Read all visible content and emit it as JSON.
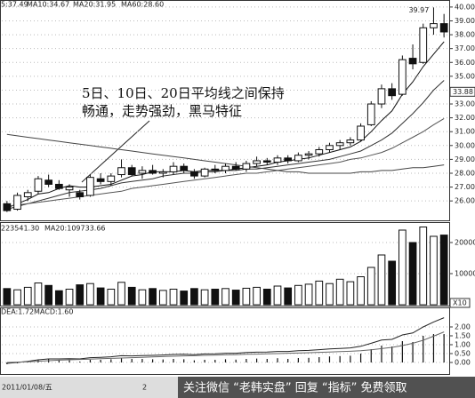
{
  "chart_data": [
    {
      "type": "candlestick",
      "header": [
        "5:37.49",
        "MA10:34.67",
        "MA20:31.95",
        "MA60:28.60"
      ],
      "annotation": [
        "5日、10日、20日平均线之间保持",
        "畅通，走势强劲，黑马特征"
      ],
      "open": [
        25.8,
        25.4,
        26.3,
        26.7,
        27.5,
        27.2,
        26.8,
        26.6,
        26.4,
        27.6,
        27.4,
        27.9,
        28.4,
        28.0,
        28.2,
        28.0,
        28.1,
        28.5,
        28.1,
        27.8,
        28.3,
        28.2,
        28.5,
        28.3,
        28.7,
        28.9,
        28.8,
        29.1,
        28.9,
        29.3,
        29.4,
        29.7,
        30.0,
        30.2,
        30.4,
        31.5,
        33.0,
        34.1,
        33.7,
        36.3,
        36.0,
        38.5,
        38.8
      ],
      "high": [
        26.0,
        26.6,
        26.8,
        27.8,
        27.9,
        27.5,
        27.2,
        26.8,
        27.9,
        28.0,
        28.0,
        29.0,
        28.6,
        28.5,
        28.6,
        28.3,
        28.8,
        28.7,
        28.3,
        28.4,
        28.6,
        28.7,
        28.8,
        28.9,
        29.2,
        29.1,
        29.3,
        29.3,
        29.5,
        29.6,
        29.9,
        30.2,
        30.4,
        30.6,
        31.6,
        33.2,
        34.4,
        34.5,
        36.5,
        37.3,
        38.8,
        39.97,
        39.5
      ],
      "low": [
        25.2,
        25.3,
        26.0,
        26.5,
        27.0,
        26.8,
        26.3,
        26.1,
        26.3,
        27.2,
        27.1,
        27.7,
        27.8,
        27.6,
        27.9,
        27.7,
        27.9,
        28.0,
        27.6,
        27.7,
        28.0,
        28.0,
        28.2,
        28.1,
        28.5,
        28.6,
        28.6,
        28.7,
        28.8,
        29.0,
        29.2,
        29.5,
        29.7,
        30.0,
        30.3,
        31.4,
        32.7,
        33.3,
        33.6,
        35.5,
        35.9,
        38.0,
        37.8
      ],
      "close": [
        25.3,
        26.4,
        26.6,
        27.6,
        27.2,
        26.9,
        27.0,
        26.3,
        27.7,
        27.4,
        27.8,
        28.4,
        27.9,
        28.2,
        28.0,
        28.1,
        28.5,
        28.2,
        27.8,
        28.3,
        28.2,
        28.5,
        28.3,
        28.7,
        28.9,
        28.8,
        29.1,
        28.9,
        29.3,
        29.4,
        29.7,
        30.0,
        30.2,
        30.4,
        31.4,
        33.0,
        34.1,
        33.6,
        36.2,
        35.9,
        38.5,
        38.8,
        38.2
      ],
      "series": [
        {
          "color": "#111",
          "values": [
            25.5,
            25.8,
            26.1,
            26.5,
            26.6,
            26.9,
            27.1,
            27.0,
            27.0,
            27.1,
            27.2,
            27.5,
            27.8,
            27.9,
            28.1,
            28.1,
            28.1,
            28.2,
            28.1,
            28.2,
            28.2,
            28.2,
            28.3,
            28.4,
            28.5,
            28.6,
            28.8,
            28.9,
            29.0,
            29.1,
            29.3,
            29.5,
            29.7,
            29.9,
            30.3,
            31.0,
            31.8,
            32.5,
            33.7,
            34.6,
            35.7,
            36.6,
            37.5
          ]
        },
        {
          "color": "#333",
          "values": [
            25.4,
            25.6,
            25.8,
            26.0,
            26.2,
            26.4,
            26.6,
            26.7,
            26.8,
            26.9,
            27.1,
            27.3,
            27.4,
            27.5,
            27.6,
            27.8,
            27.9,
            28.0,
            28.0,
            28.1,
            28.1,
            28.2,
            28.2,
            28.3,
            28.3,
            28.4,
            28.5,
            28.6,
            28.7,
            28.8,
            28.9,
            29.0,
            29.2,
            29.4,
            29.6,
            30.0,
            30.4,
            30.9,
            31.6,
            32.3,
            33.1,
            34.0,
            34.7
          ]
        },
        {
          "color": "#555",
          "values": [
            25.6,
            25.7,
            25.8,
            25.9,
            26.0,
            26.1,
            26.2,
            26.3,
            26.4,
            26.5,
            26.6,
            26.7,
            26.9,
            27.0,
            27.1,
            27.2,
            27.3,
            27.4,
            27.5,
            27.6,
            27.7,
            27.8,
            27.9,
            28.0,
            28.0,
            28.1,
            28.2,
            28.3,
            28.4,
            28.5,
            28.6,
            28.7,
            28.8,
            29.0,
            29.1,
            29.3,
            29.5,
            29.8,
            30.2,
            30.6,
            31.0,
            31.5,
            31.95
          ]
        },
        {
          "color": "#444",
          "values": [
            30.8,
            30.7,
            30.6,
            30.5,
            30.4,
            30.3,
            30.2,
            30.1,
            30.0,
            29.9,
            29.8,
            29.7,
            29.6,
            29.5,
            29.4,
            29.3,
            29.2,
            29.1,
            29.0,
            28.9,
            28.8,
            28.7,
            28.6,
            28.5,
            28.4,
            28.3,
            28.2,
            28.1,
            28.1,
            28.0,
            28.0,
            28.0,
            28.0,
            28.0,
            28.1,
            28.1,
            28.2,
            28.2,
            28.3,
            28.4,
            28.4,
            28.5,
            28.6
          ]
        }
      ],
      "last_price": 33.88,
      "ylim": [
        24.6,
        40.25
      ],
      "yticks": [
        {
          "value": 26,
          "label": "26.00"
        },
        {
          "value": 27,
          "label": "27.00"
        },
        {
          "value": 28,
          "label": "28.00"
        },
        {
          "value": 29,
          "label": "29.00"
        },
        {
          "value": 30,
          "label": "30.00"
        },
        {
          "value": 31,
          "label": "31.00"
        },
        {
          "value": 32,
          "label": "32.00"
        },
        {
          "value": 33,
          "label": "33.00"
        },
        {
          "value": 34,
          "label": "34.00"
        },
        {
          "value": 35,
          "label": "35.00"
        },
        {
          "value": 36,
          "label": "36.00"
        },
        {
          "value": 37,
          "label": "37.00"
        },
        {
          "value": 38,
          "label": "38.00"
        },
        {
          "value": 39,
          "label": "39.00"
        },
        {
          "value": 40,
          "label": "40.00"
        }
      ]
    },
    {
      "type": "bar",
      "header": [
        "223541.30",
        "MA20:109733.66"
      ],
      "unit_label": "X10",
      "values": [
        5200,
        4800,
        5600,
        7000,
        6200,
        4500,
        5000,
        6400,
        6800,
        5400,
        5000,
        7200,
        5600,
        4800,
        5200,
        4600,
        5000,
        4400,
        5200,
        4800,
        5000,
        5200,
        4700,
        5300,
        5600,
        5000,
        6000,
        5400,
        6200,
        6600,
        7600,
        6800,
        8200,
        7400,
        9000,
        12000,
        16000,
        14000,
        24000,
        20000,
        25000,
        22000,
        22400
      ],
      "ylim": [
        0,
        26000
      ],
      "yticks": [
        10000,
        20000
      ]
    },
    {
      "type": "macd",
      "header": [
        "DEA:1.72",
        "MACD:1.60"
      ],
      "values": [
        -0.1,
        -0.05,
        0.05,
        0.15,
        0.2,
        0.15,
        0.12,
        0.05,
        0.15,
        0.15,
        0.18,
        0.25,
        0.2,
        0.2,
        0.18,
        0.17,
        0.2,
        0.18,
        0.12,
        0.15,
        0.15,
        0.18,
        0.16,
        0.2,
        0.22,
        0.2,
        0.24,
        0.2,
        0.25,
        0.26,
        0.3,
        0.34,
        0.36,
        0.38,
        0.5,
        0.75,
        0.95,
        0.9,
        1.2,
        1.15,
        1.5,
        1.6,
        1.6
      ],
      "dif": [
        -0.05,
        0.0,
        0.06,
        0.15,
        0.2,
        0.2,
        0.21,
        0.2,
        0.27,
        0.29,
        0.32,
        0.38,
        0.37,
        0.39,
        0.4,
        0.42,
        0.45,
        0.46,
        0.44,
        0.48,
        0.49,
        0.52,
        0.52,
        0.56,
        0.58,
        0.59,
        0.62,
        0.62,
        0.66,
        0.68,
        0.72,
        0.76,
        0.79,
        0.82,
        0.91,
        1.08,
        1.26,
        1.3,
        1.55,
        1.66,
        2.0,
        2.28,
        2.52
      ],
      "dea": [
        0.0,
        0.02,
        0.04,
        0.07,
        0.1,
        0.13,
        0.15,
        0.17,
        0.19,
        0.21,
        0.23,
        0.25,
        0.27,
        0.29,
        0.31,
        0.33,
        0.35,
        0.37,
        0.38,
        0.4,
        0.41,
        0.43,
        0.44,
        0.46,
        0.47,
        0.49,
        0.5,
        0.52,
        0.53,
        0.55,
        0.57,
        0.59,
        0.61,
        0.63,
        0.66,
        0.71,
        0.78,
        0.85,
        0.95,
        1.08,
        1.25,
        1.48,
        1.72
      ],
      "ylim": [
        -0.6,
        2.9
      ],
      "yticks": [
        {
          "value": 0,
          "label": "0.00"
        },
        {
          "value": 0.5,
          "label": "0.50"
        },
        {
          "value": 1,
          "label": "1.00"
        },
        {
          "value": 1.5,
          "label": "1.50"
        },
        {
          "value": 2,
          "label": "2.00"
        }
      ]
    }
  ],
  "footer": {
    "date": "2011/01/08/五",
    "mark": "2",
    "watermark": "关注微信 “老韩实盘” 回复 “指标” 免费领取"
  }
}
